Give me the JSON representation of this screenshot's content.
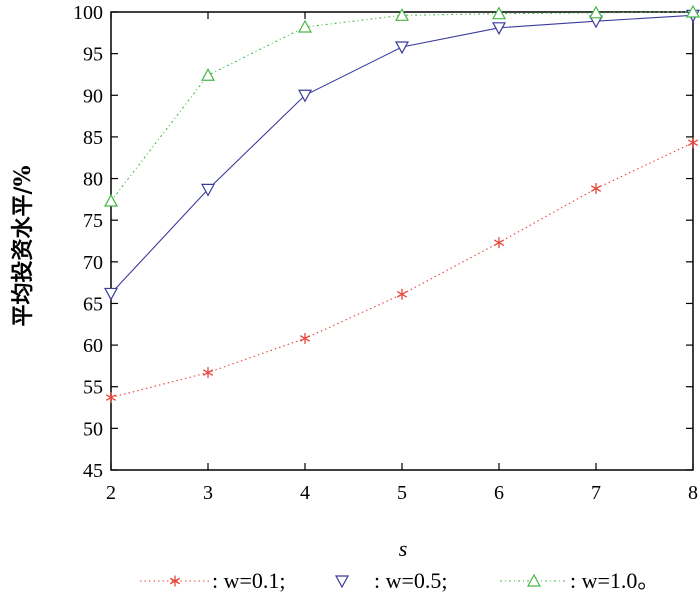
{
  "chart_data": {
    "type": "line",
    "title": "",
    "xlabel": "s",
    "ylabel": "平均投资水平/%",
    "x": [
      2,
      3,
      4,
      5,
      6,
      7,
      8
    ],
    "xlim": [
      2,
      8
    ],
    "ylim": [
      45,
      100
    ],
    "xticks": [
      "2",
      "3",
      "4",
      "5",
      "6",
      "7",
      "8"
    ],
    "yticks": [
      "45",
      "50",
      "55",
      "60",
      "65",
      "70",
      "75",
      "80",
      "85",
      "90",
      "95",
      "100"
    ],
    "grid": false,
    "legend_position": "bottom",
    "series": [
      {
        "name": "w=0.1",
        "legend_label": ": w=0.1;",
        "marker": "asterisk",
        "style": "dotted",
        "color": "#e8463a",
        "values": [
          53.7,
          56.7,
          60.8,
          66.1,
          72.3,
          78.8,
          84.3
        ]
      },
      {
        "name": "w=0.5",
        "legend_label": ": w=0.5;",
        "marker": "triangle-down",
        "style": "solid",
        "color": "#3b3b9e",
        "values": [
          66.2,
          78.7,
          90.0,
          95.8,
          98.1,
          98.9,
          99.6
        ]
      },
      {
        "name": "w=1.0",
        "legend_label": ": w=1.0。",
        "marker": "triangle-up",
        "style": "dash-dot",
        "color": "#45b845",
        "values": [
          77.3,
          92.4,
          98.2,
          99.6,
          99.8,
          99.9,
          100.0
        ]
      }
    ]
  }
}
